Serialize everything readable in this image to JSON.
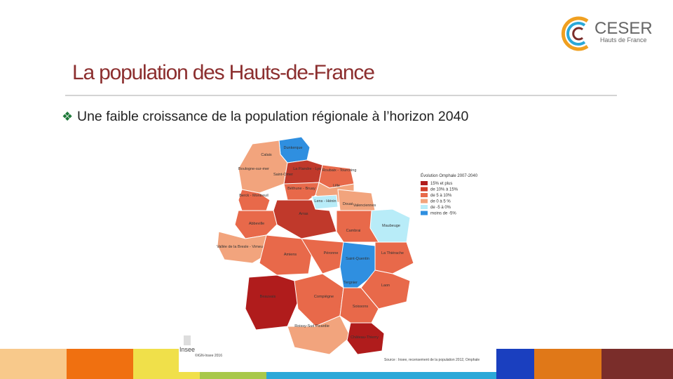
{
  "header": {
    "title": "La population des Hauts-de-France",
    "logo_name": "CESER",
    "logo_region": "Hauts de France"
  },
  "bullet": "Une faible croissance de la population régionale à l’horizon 2040",
  "map": {
    "labels": [
      "Dunkerque",
      "Calais",
      "Boulogne-sur-mer",
      "Saint-Omer",
      "La Flandre - Lys",
      "Roubaix - Tourcoing",
      "Lille",
      "Berck - Montreuil",
      "Béthune - Bruay",
      "Lens - Hénin",
      "Douai",
      "Valenciennes",
      "Arras",
      "Cambrai",
      "Maubeuge",
      "Abbeville",
      "Vallée de la Bresle - Vimeu",
      "Amiens",
      "Péronne",
      "Saint-Quentin",
      "La Thiérache",
      "Tergnier",
      "Laon",
      "Beauvais",
      "Compiègne",
      "Soissons",
      "Roissy-Sud Picardie",
      "Château-Thierry"
    ],
    "legend": {
      "title": "Évolution Omphale 2007-2040",
      "items": [
        {
          "label": "15% et plus",
          "color": "#b01c1c"
        },
        {
          "label": "de 10% à 15%",
          "color": "#d23d2a"
        },
        {
          "label": "de 5 à 10%",
          "color": "#e8694a"
        },
        {
          "label": "de 0 à 5 %",
          "color": "#f2a47d"
        },
        {
          "label": "de -5 à 0%",
          "color": "#b8ecf8"
        },
        {
          "label": "moins de -5%",
          "color": "#2f8fe0"
        }
      ]
    },
    "insee": "Insee",
    "copyright": "©IGN-Insee 2016",
    "source": "Source : Insee, recensement de la population 2012, Omphale"
  }
}
